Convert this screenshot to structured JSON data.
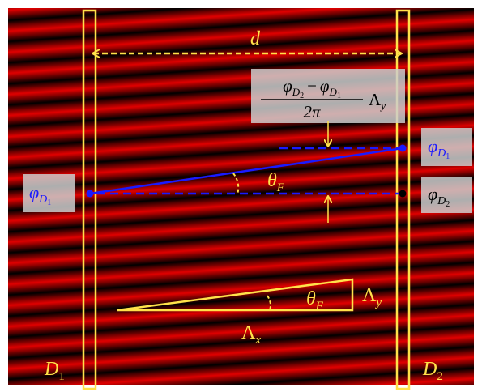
{
  "labels": {
    "distance": "d",
    "left_detector": {
      "main": "D",
      "sub": "1"
    },
    "right_detector": {
      "main": "D",
      "sub": "2"
    },
    "phase_left": {
      "main": "φ",
      "sub": "D",
      "subsub": "1"
    },
    "phase_right_top": {
      "main": "φ",
      "sub": "D",
      "subsub": "1"
    },
    "phase_right_bottom": {
      "main": "φ",
      "sub": "D",
      "subsub": "2"
    },
    "shift_formula": {
      "numerator": [
        {
          "main": "φ",
          "sub": "D",
          "subsub": "2"
        },
        {
          "main": "−"
        },
        {
          "main": "φ",
          "sub": "D",
          "subsub": "1"
        }
      ],
      "denominator": "2π",
      "factor": {
        "main": "Λ",
        "sub": "y"
      }
    },
    "angle_top": {
      "main": "θ",
      "sub": "F"
    },
    "angle_bottom": {
      "main": "θ",
      "sub": "F"
    },
    "period_y": {
      "main": "Λ",
      "sub": "y"
    },
    "period_x": {
      "main": "Λ",
      "sub": "x"
    }
  }
}
